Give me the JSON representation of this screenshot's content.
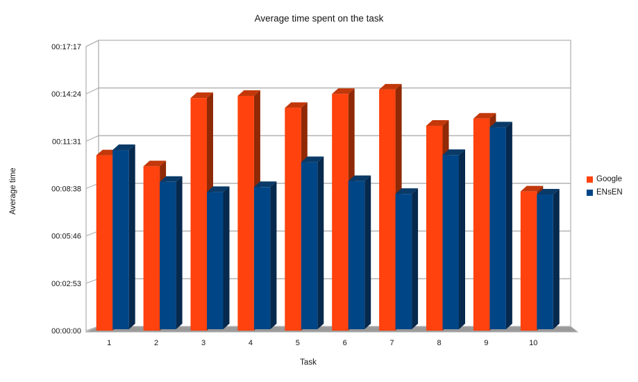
{
  "title": "Average time spent on the task",
  "chart_data": {
    "type": "bar",
    "subtype": "3d-column",
    "title": "Average time spent on the task",
    "xlabel": "Task",
    "ylabel": "Average time",
    "categories": [
      "1",
      "2",
      "3",
      "4",
      "5",
      "6",
      "7",
      "8",
      "9",
      "10"
    ],
    "y_ticks": [
      "00:00:00",
      "00:02:53",
      "00:05:46",
      "00:08:38",
      "00:11:31",
      "00:14:24",
      "00:17:17"
    ],
    "ylim_seconds": [
      0,
      1037
    ],
    "y_tick_step_seconds": 173,
    "grid": true,
    "legend_position": "right",
    "series": [
      {
        "name": "Google",
        "color": "#FF420E",
        "values_seconds": [
          640,
          600,
          849,
          857,
          813,
          864,
          880,
          748,
          774,
          508
        ],
        "values_hms": [
          "00:10:40",
          "00:10:00",
          "00:14:09",
          "00:14:17",
          "00:13:33",
          "00:14:24",
          "00:14:40",
          "00:12:28",
          "00:12:54",
          "00:08:28"
        ]
      },
      {
        "name": "ENsEN",
        "color": "#004586",
        "values_seconds": [
          654,
          538,
          501,
          519,
          610,
          541,
          494,
          636,
          737,
          492
        ],
        "values_hms": [
          "00:10:54",
          "00:08:58",
          "00:08:21",
          "00:08:39",
          "00:10:10",
          "00:09:01",
          "00:08:14",
          "00:10:36",
          "00:12:17",
          "00:08:12"
        ]
      }
    ]
  },
  "colors": {
    "google_front": "#FF420E",
    "google_top": "#C2380B",
    "google_side": "#8F2906",
    "ensen_front": "#004586",
    "ensen_top": "#0A3A67",
    "ensen_side": "#06294D",
    "grid": "#B2B2B2",
    "floor": "#9B9B9B",
    "wall": "#FFFFFF",
    "text": "#141414"
  }
}
